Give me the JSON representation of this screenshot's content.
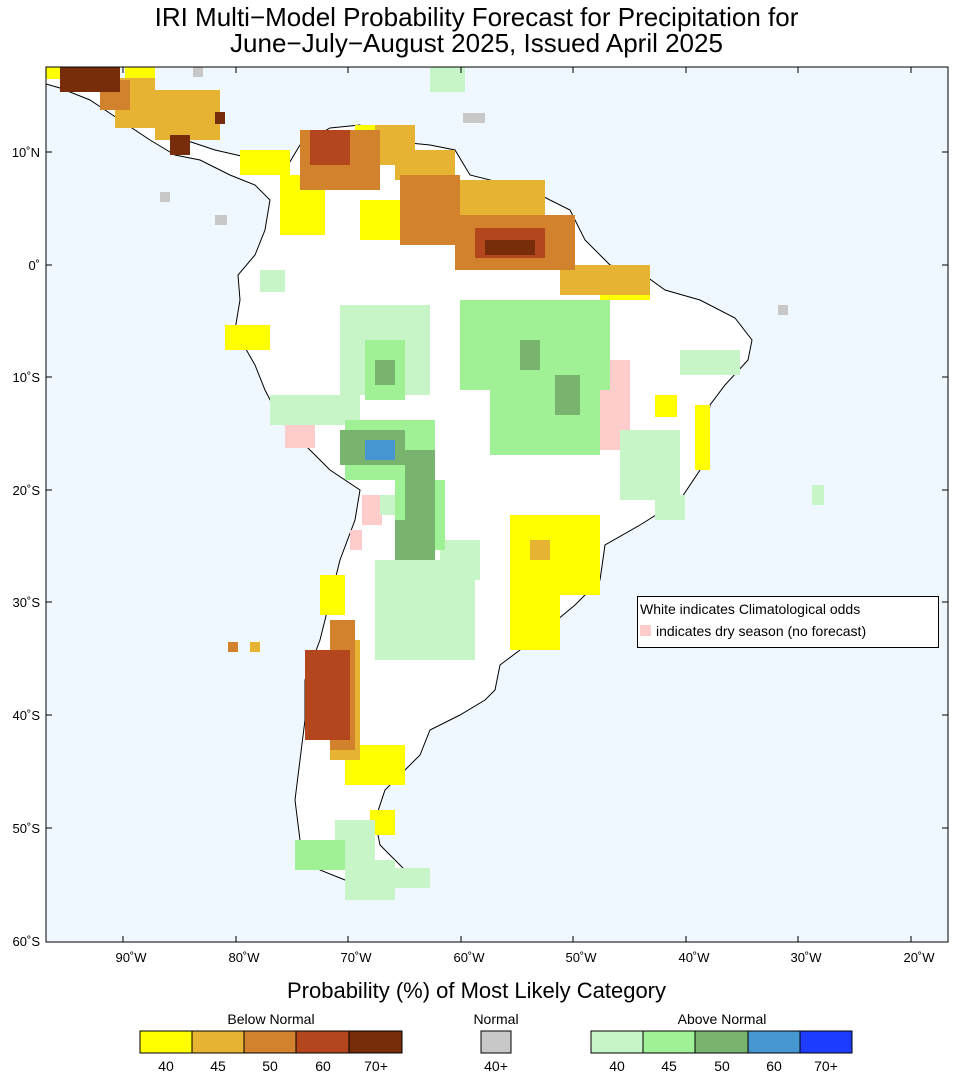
{
  "title": {
    "line1": "IRI Multi−Model Probability Forecast for Precipitation for",
    "line2": "June−July−August 2025, Issued April 2025"
  },
  "map": {
    "background_color": "#f0f8ff",
    "land_color": "#ffffff",
    "lat_labels": [
      "10˚N",
      "0˚",
      "10˚S",
      "20˚S",
      "30˚S",
      "40˚S",
      "50˚S",
      "60˚S"
    ],
    "lon_labels": [
      "90˚W",
      "80˚W",
      "70˚W",
      "60˚W",
      "50˚W",
      "40˚W",
      "30˚W",
      "20˚W"
    ]
  },
  "note": {
    "line1": "White indicates Climatological odds",
    "line2": "indicates dry season (no forecast)",
    "dry_color": "#ffcccc"
  },
  "legend": {
    "title": "Probability (%) of Most Likely Category",
    "below": {
      "label": "Below Normal",
      "colors": [
        "#ffff00",
        "#e6b432",
        "#d2822d",
        "#b4461e",
        "#782d0a"
      ],
      "ticks": [
        "40",
        "45",
        "50",
        "60",
        "70+"
      ]
    },
    "normal": {
      "label": "Normal",
      "color": "#c8c8c8",
      "tick": "40+"
    },
    "above": {
      "label": "Above Normal",
      "colors": [
        "#c8f5c8",
        "#a0f096",
        "#78b46e",
        "#4696d2",
        "#1e3cff"
      ],
      "ticks": [
        "40",
        "45",
        "50",
        "60",
        "70+"
      ]
    }
  }
}
